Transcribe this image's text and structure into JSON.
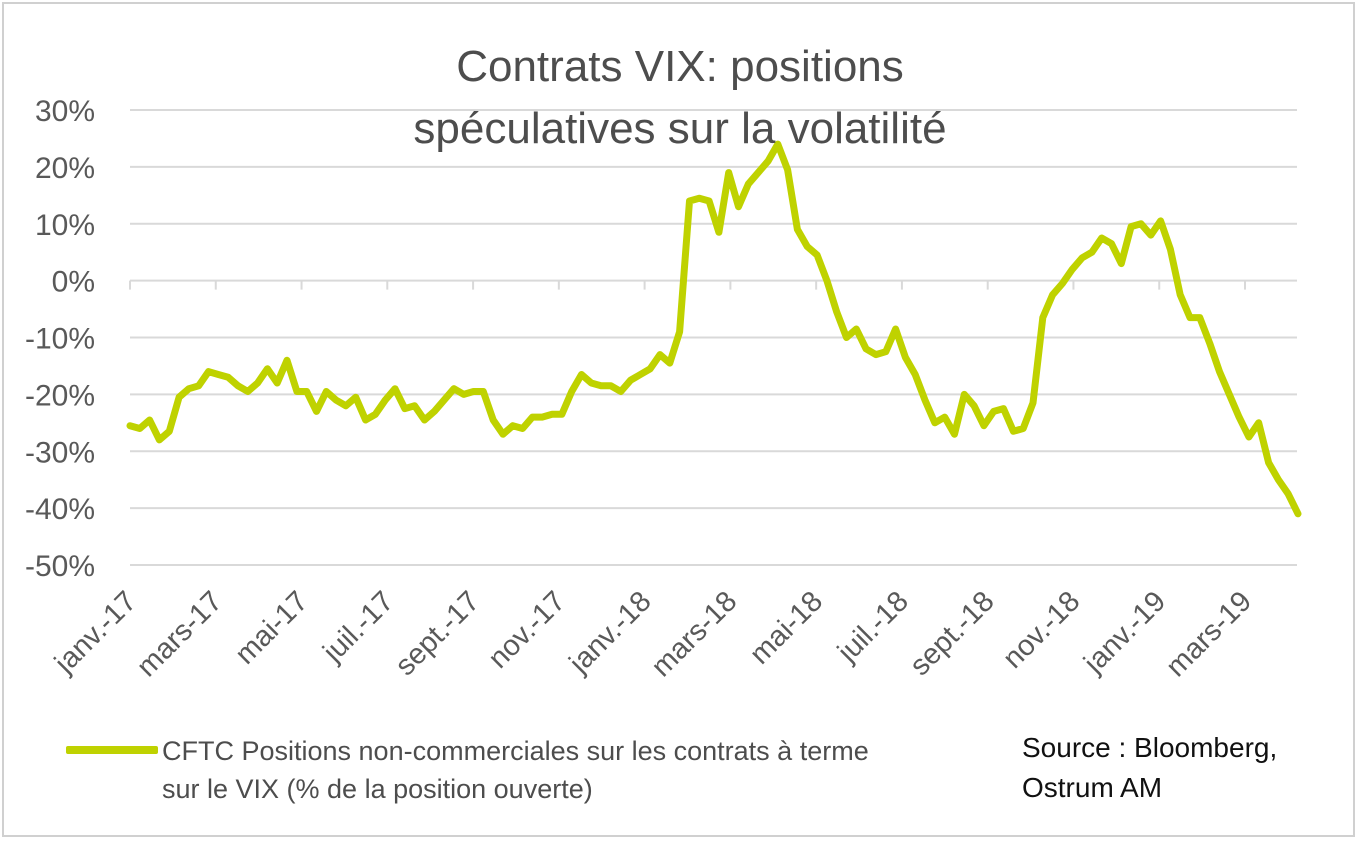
{
  "chart_data": {
    "type": "line",
    "title": "Contrats VIX: positions spéculatives sur la volatilité",
    "xlabel": "",
    "ylabel": "",
    "ylim": [
      -50,
      30
    ],
    "yticks": [
      "30%",
      "20%",
      "10%",
      "0%",
      "-10%",
      "-20%",
      "-30%",
      "-40%",
      "-50%"
    ],
    "xticks": [
      "janv.-17",
      "mars-17",
      "mai-17",
      "juil.-17",
      "sept.-17",
      "nov.-17",
      "janv.-18",
      "mars-18",
      "mai-18",
      "juil.-18",
      "sept.-18",
      "nov.-18",
      "janv.-19",
      "mars-19"
    ],
    "grid": true,
    "legend_position": "bottom-left",
    "color": "#bfd200",
    "series": [
      {
        "name": "CFTC Positions non-commerciales sur les contrats à terme sur le VIX (% de la position ouverte)",
        "values": [
          -25.5,
          -26,
          -24.5,
          -28,
          -26.5,
          -20.5,
          -19,
          -18.5,
          -16,
          -16.5,
          -17,
          -18.5,
          -19.5,
          -18,
          -15.5,
          -18,
          -14,
          -19.5,
          -19.5,
          -23,
          -19.5,
          -21,
          -22,
          -20.5,
          -24.5,
          -23.5,
          -21,
          -19,
          -22.5,
          -22,
          -24.5,
          -23,
          -21,
          -19,
          -20,
          -19.5,
          -19.5,
          -24.5,
          -27,
          -25.5,
          -26,
          -24,
          -24,
          -23.5,
          -23.5,
          -19.5,
          -16.5,
          -18,
          -18.5,
          -18.5,
          -19.5,
          -17.5,
          -16.5,
          -15.5,
          -13,
          -14.5,
          -9,
          14,
          14.5,
          14,
          8.5,
          19,
          13,
          17,
          19,
          21,
          24,
          19.5,
          9,
          6,
          4.5,
          0,
          -5.5,
          -10,
          -8.5,
          -12,
          -13,
          -12.5,
          -8.5,
          -13.5,
          -16.5,
          -21,
          -25,
          -24,
          -27,
          -20,
          -22,
          -25.5,
          -23,
          -22.5,
          -26.5,
          -26,
          -21.5,
          -6.5,
          -2.5,
          -0.5,
          2,
          4,
          5,
          7.5,
          6.5,
          3,
          9.5,
          10,
          8,
          10.5,
          5.5,
          -2.5,
          -6.5,
          -6.5,
          -11,
          -16,
          -20,
          -24,
          -27.5,
          -25,
          -32,
          -35,
          -37.5,
          -41
        ]
      }
    ],
    "annotation": "Source : Bloomberg, Ostrum AM"
  }
}
